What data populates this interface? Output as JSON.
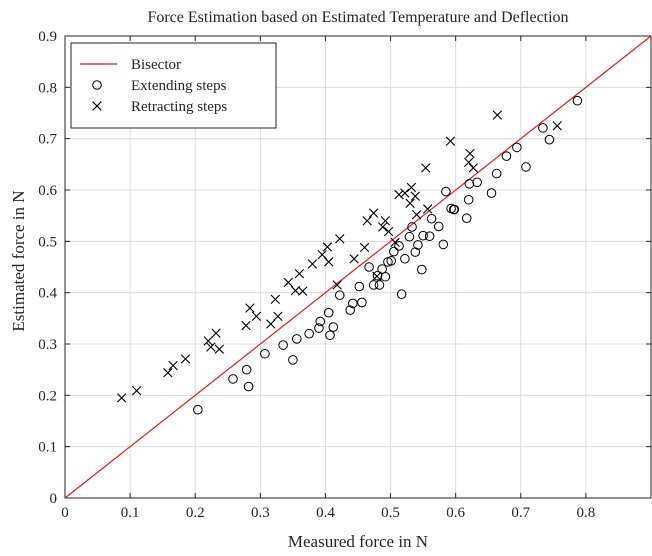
{
  "chart_data": {
    "type": "scatter",
    "title": "Force Estimation based on Estimated Temperature and Deflection",
    "xlabel": "Measured force in  N",
    "ylabel": "Estimated force in  N",
    "xlim": [
      0,
      0.9
    ],
    "ylim": [
      0,
      0.9
    ],
    "xticks": [
      0,
      0.1,
      0.2,
      0.3,
      0.4,
      0.5,
      0.6,
      0.7,
      0.8
    ],
    "yticks": [
      0,
      0.1,
      0.2,
      0.3,
      0.4,
      0.5,
      0.6,
      0.7,
      0.8,
      0.9
    ],
    "grid": true,
    "legend_position": "top-left",
    "series": [
      {
        "name": "Bisector",
        "kind": "line",
        "color": "#e41a1c",
        "points": [
          [
            0,
            0
          ],
          [
            0.9,
            0.9
          ]
        ]
      },
      {
        "name": "Extending steps",
        "kind": "marker",
        "marker": "circle",
        "color": "#000000",
        "points": [
          [
            0.204,
            0.172
          ],
          [
            0.258,
            0.232
          ],
          [
            0.279,
            0.25
          ],
          [
            0.282,
            0.217
          ],
          [
            0.307,
            0.281
          ],
          [
            0.335,
            0.298
          ],
          [
            0.35,
            0.269
          ],
          [
            0.356,
            0.31
          ],
          [
            0.375,
            0.32
          ],
          [
            0.39,
            0.331
          ],
          [
            0.392,
            0.344
          ],
          [
            0.405,
            0.361
          ],
          [
            0.407,
            0.317
          ],
          [
            0.412,
            0.333
          ],
          [
            0.422,
            0.395
          ],
          [
            0.438,
            0.366
          ],
          [
            0.442,
            0.379
          ],
          [
            0.452,
            0.412
          ],
          [
            0.456,
            0.381
          ],
          [
            0.467,
            0.45
          ],
          [
            0.474,
            0.415
          ],
          [
            0.48,
            0.433
          ],
          [
            0.483,
            0.415
          ],
          [
            0.487,
            0.446
          ],
          [
            0.492,
            0.431
          ],
          [
            0.496,
            0.46
          ],
          [
            0.501,
            0.462
          ],
          [
            0.505,
            0.48
          ],
          [
            0.513,
            0.491
          ],
          [
            0.517,
            0.397
          ],
          [
            0.522,
            0.466
          ],
          [
            0.529,
            0.509
          ],
          [
            0.533,
            0.528
          ],
          [
            0.538,
            0.479
          ],
          [
            0.542,
            0.493
          ],
          [
            0.548,
            0.445
          ],
          [
            0.55,
            0.511
          ],
          [
            0.56,
            0.51
          ],
          [
            0.563,
            0.544
          ],
          [
            0.574,
            0.529
          ],
          [
            0.581,
            0.494
          ],
          [
            0.585,
            0.597
          ],
          [
            0.593,
            0.564
          ],
          [
            0.597,
            0.562
          ],
          [
            0.598,
            0.562
          ],
          [
            0.617,
            0.545
          ],
          [
            0.62,
            0.581
          ],
          [
            0.621,
            0.612
          ],
          [
            0.633,
            0.615
          ],
          [
            0.655,
            0.594
          ],
          [
            0.663,
            0.632
          ],
          [
            0.678,
            0.666
          ],
          [
            0.694,
            0.683
          ],
          [
            0.708,
            0.645
          ],
          [
            0.734,
            0.721
          ],
          [
            0.744,
            0.698
          ],
          [
            0.787,
            0.774
          ]
        ]
      },
      {
        "name": "Retracting steps",
        "kind": "marker",
        "marker": "x",
        "color": "#000000",
        "points": [
          [
            0.087,
            0.195
          ],
          [
            0.11,
            0.209
          ],
          [
            0.158,
            0.244
          ],
          [
            0.166,
            0.258
          ],
          [
            0.185,
            0.271
          ],
          [
            0.22,
            0.306
          ],
          [
            0.224,
            0.294
          ],
          [
            0.232,
            0.321
          ],
          [
            0.237,
            0.29
          ],
          [
            0.278,
            0.336
          ],
          [
            0.284,
            0.37
          ],
          [
            0.294,
            0.354
          ],
          [
            0.316,
            0.339
          ],
          [
            0.323,
            0.387
          ],
          [
            0.327,
            0.354
          ],
          [
            0.343,
            0.42
          ],
          [
            0.354,
            0.404
          ],
          [
            0.36,
            0.437
          ],
          [
            0.365,
            0.403
          ],
          [
            0.38,
            0.456
          ],
          [
            0.395,
            0.474
          ],
          [
            0.403,
            0.489
          ],
          [
            0.405,
            0.46
          ],
          [
            0.418,
            0.415
          ],
          [
            0.422,
            0.505
          ],
          [
            0.444,
            0.466
          ],
          [
            0.46,
            0.488
          ],
          [
            0.464,
            0.54
          ],
          [
            0.474,
            0.555
          ],
          [
            0.479,
            0.432
          ],
          [
            0.488,
            0.528
          ],
          [
            0.492,
            0.54
          ],
          [
            0.497,
            0.519
          ],
          [
            0.507,
            0.498
          ],
          [
            0.513,
            0.591
          ],
          [
            0.522,
            0.594
          ],
          [
            0.53,
            0.574
          ],
          [
            0.532,
            0.605
          ],
          [
            0.538,
            0.588
          ],
          [
            0.54,
            0.552
          ],
          [
            0.554,
            0.643
          ],
          [
            0.557,
            0.563
          ],
          [
            0.592,
            0.695
          ],
          [
            0.62,
            0.654
          ],
          [
            0.622,
            0.671
          ],
          [
            0.627,
            0.643
          ],
          [
            0.664,
            0.746
          ],
          [
            0.756,
            0.725
          ]
        ]
      }
    ]
  }
}
